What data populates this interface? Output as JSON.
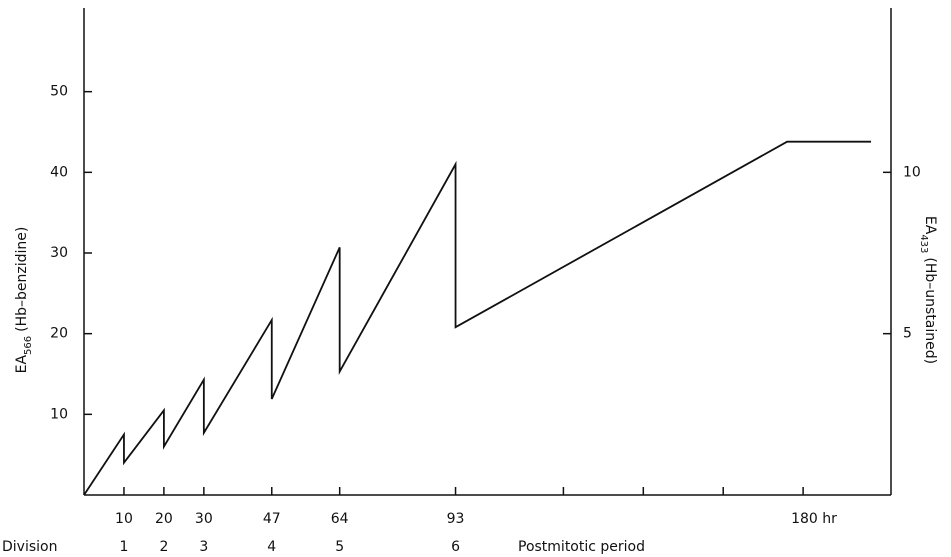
{
  "chart_data": {
    "type": "line",
    "y_label": {
      "main": "EA",
      "sub": "566",
      "rest": "(Hb–benzidine)"
    },
    "y2_label": {
      "main": "EA",
      "sub": "433",
      "rest": "(Hb–unstained)"
    },
    "x_label": "Postmitotic period",
    "series": [
      {
        "color": "#111111",
        "x": [
          0,
          10,
          10,
          20,
          20,
          30,
          30,
          47,
          47,
          64,
          64,
          93,
          93,
          176,
          197
        ],
        "values": [
          0,
          7.5,
          4,
          10.5,
          6,
          14.3,
          7.7,
          21.7,
          11.9,
          30.7,
          15.3,
          41,
          20.8,
          43.8,
          43.8
        ]
      }
    ],
    "xlim": [
      0,
      202
    ],
    "xticks": [
      10,
      20,
      30,
      47,
      64,
      93,
      {
        "value": 180,
        "label": "180 hr"
      }
    ],
    "minor_xticks": [
      120,
      140,
      160
    ],
    "ylim": [
      0,
      60
    ],
    "yticks": [
      10,
      20,
      30,
      40,
      50
    ],
    "y2lim": [
      0,
      15
    ],
    "y2ticks": [
      5,
      10
    ],
    "divisions": {
      "label": "Division",
      "values": [
        1,
        2,
        3,
        4,
        5,
        6
      ]
    },
    "grid": false
  }
}
